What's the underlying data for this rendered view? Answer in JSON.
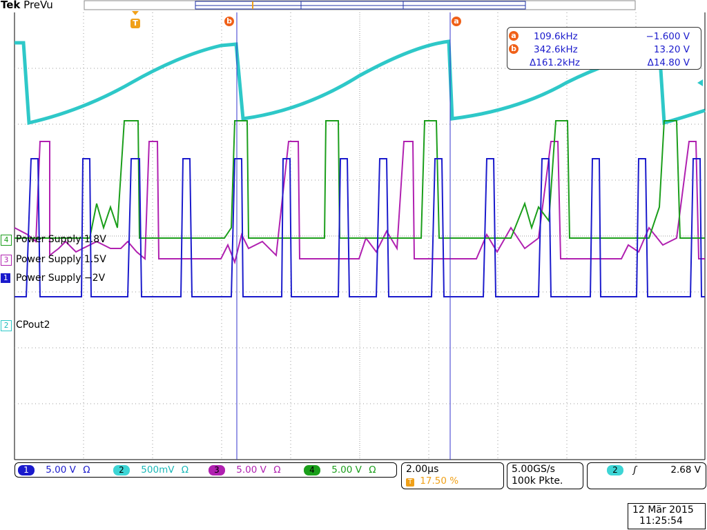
{
  "header": {
    "brand": "Tek",
    "mode": "PreVu",
    "trigger_marker": "T"
  },
  "cursor_readout": {
    "rows": [
      {
        "marker": "a",
        "freq": "109.6kHz",
        "volt": "−1.600 V"
      },
      {
        "marker": "b",
        "freq": "342.6kHz",
        "volt": "13.20 V"
      },
      {
        "marker": "",
        "freq": "Δ161.2kHz",
        "volt": "Δ14.80 V"
      }
    ]
  },
  "cursor_markers": {
    "a": "a",
    "b": "b"
  },
  "channel_labels": [
    {
      "num": "4",
      "text": "Power Supply 1.8V",
      "color": "#1a9e1a"
    },
    {
      "num": "3",
      "text": "Power Supply 1.5V",
      "color": "#b020b0"
    },
    {
      "num": "1",
      "text": "Power Supply −2V",
      "color": "#1a1acc"
    },
    {
      "num": "2",
      "text": "CPout2",
      "color": "#1ac8c8"
    }
  ],
  "bottom_bar": {
    "channels": [
      {
        "num": "1",
        "scale": "5.00 V",
        "unit": "Ω",
        "color": "#1a1acc",
        "text_color": "#1a1acc"
      },
      {
        "num": "2",
        "scale": "500mV",
        "unit": "Ω",
        "color": "#3dd5d5",
        "text_color": "#1ab8b8"
      },
      {
        "num": "3",
        "scale": "5.00 V",
        "unit": "Ω",
        "color": "#b020b0",
        "text_color": "#b020b0"
      },
      {
        "num": "4",
        "scale": "5.00 V",
        "unit": "Ω",
        "color": "#1a9e1a",
        "text_color": "#1a9e1a"
      }
    ],
    "timebase": "2.00µs",
    "trigger_pos": "17.50 %",
    "trigger_pos_marker": "T",
    "sample_rate": "5.00GS/s",
    "record_length": "100k Pkte.",
    "trigger_channel": "2",
    "trigger_slope": "ʃ",
    "trigger_level": "2.68 V"
  },
  "datetime": {
    "date": "12 Mär 2015",
    "time": "11:25:54"
  },
  "colors": {
    "ch1": "#1a1acc",
    "ch2": "#2ec8c8",
    "ch3": "#b020b0",
    "ch4": "#1a9e1a",
    "cursor": "#3333cc",
    "marker_orange": "#f06018",
    "trigger_orange": "#f0a018"
  }
}
